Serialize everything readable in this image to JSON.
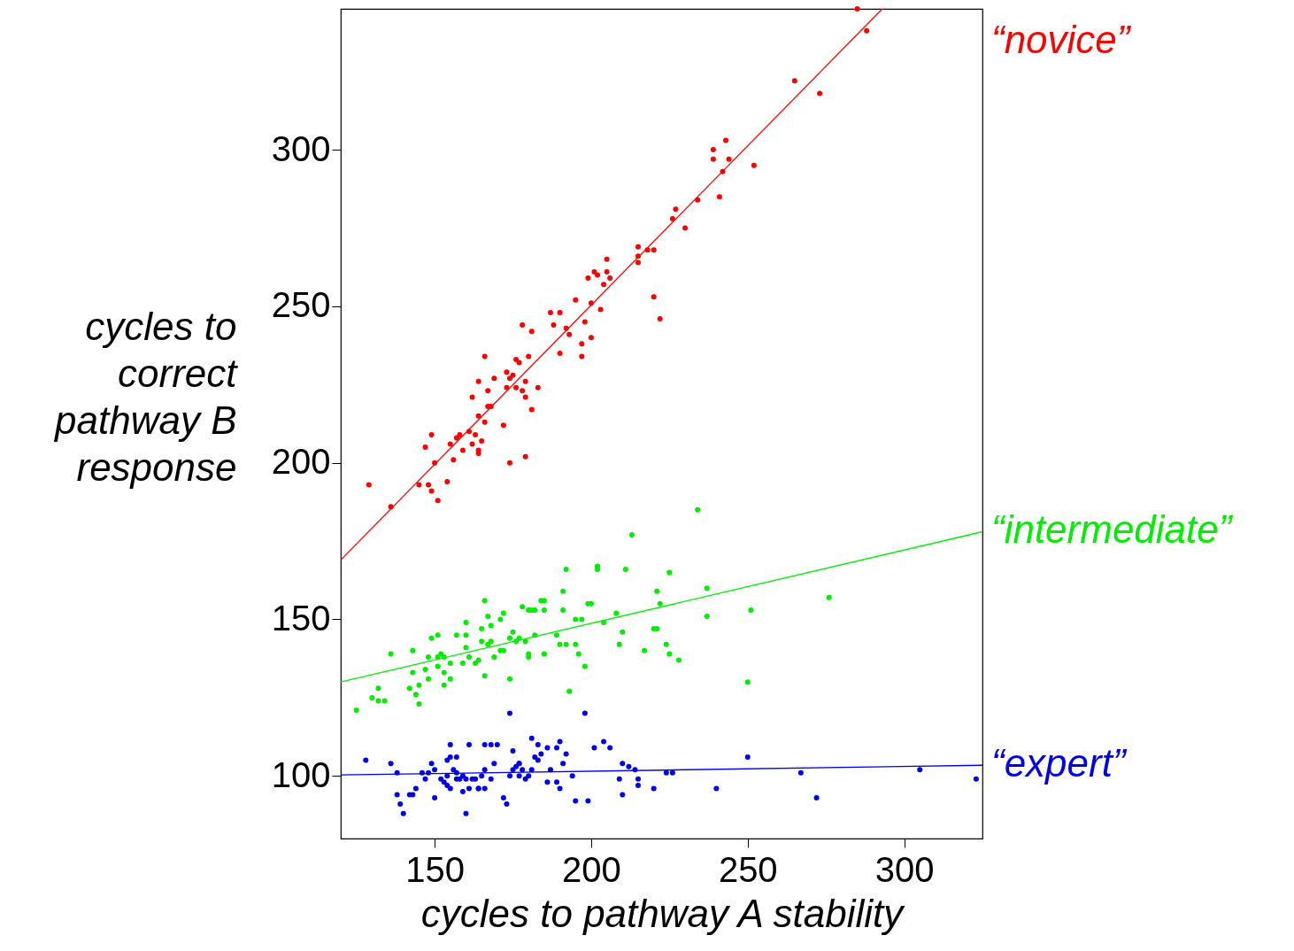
{
  "chart_data": {
    "type": "scatter",
    "xlabel": "cycles to pathway A stability",
    "ylabel": "cycles to correct pathway B response",
    "xlim": [
      120,
      325
    ],
    "ylim": [
      80,
      345
    ],
    "xticks": [
      150,
      200,
      250,
      300
    ],
    "yticks": [
      100,
      150,
      200,
      250,
      300
    ],
    "series": [
      {
        "type": "scatter",
        "marker": "circle",
        "color": "#ff0000",
        "x": [
          129,
          136,
          145,
          147,
          149,
          148,
          149,
          150,
          151,
          154,
          155,
          156,
          157,
          158,
          159,
          161,
          162,
          162,
          163,
          164,
          164,
          165,
          164,
          164,
          166,
          166,
          167,
          167,
          168,
          169,
          172,
          173,
          173,
          174,
          174,
          175,
          176,
          176,
          177,
          178,
          178,
          179,
          179,
          179,
          180,
          181,
          181,
          183,
          187,
          188,
          190,
          190,
          192,
          193,
          195,
          197,
          197,
          198,
          199,
          200,
          200,
          201,
          202,
          203,
          204,
          205,
          205,
          206,
          215,
          215,
          215,
          218,
          220,
          220,
          222,
          226,
          227,
          230,
          234,
          239,
          239,
          241,
          242,
          243,
          244,
          252,
          265,
          273,
          285,
          288
        ],
        "values": [
          193,
          186,
          193,
          205,
          209,
          193,
          191,
          200,
          188,
          194,
          206,
          201,
          208,
          209,
          204,
          210,
          221,
          206,
          209,
          204,
          215,
          207,
          226,
          203,
          213,
          234,
          223,
          218,
          218,
          227,
          212,
          229,
          224,
          227,
          200,
          228,
          224,
          233,
          232,
          223,
          244,
          226,
          202,
          221,
          234,
          242,
          217,
          224,
          248,
          244,
          248,
          235,
          243,
          241,
          252,
          238,
          234,
          245,
          259,
          251,
          240,
          261,
          260,
          249,
          257,
          261,
          265,
          259,
          269,
          264,
          266,
          268,
          268,
          253,
          246,
          278,
          281,
          275,
          284,
          300,
          297,
          285,
          293,
          303,
          297,
          295,
          322,
          318,
          345,
          338
        ]
      },
      {
        "type": "line",
        "marker": "none",
        "name": "“novice”",
        "color": "#ff0000",
        "x": [
          120,
          293
        ],
        "values": [
          169,
          345
        ]
      },
      {
        "type": "scatter",
        "marker": "circle",
        "color": "#00ee00",
        "x": [
          125,
          130,
          132,
          132,
          134,
          136,
          142,
          143,
          143,
          144,
          145,
          145,
          147,
          148,
          148,
          149,
          151,
          151,
          151,
          152,
          153,
          153,
          153,
          155,
          155,
          157,
          159,
          160,
          160,
          160,
          161,
          163,
          164,
          165,
          165,
          166,
          166,
          167,
          167,
          168,
          168,
          169,
          171,
          171,
          172,
          172,
          174,
          174,
          175,
          176,
          177,
          178,
          179,
          180,
          180,
          180,
          181,
          182,
          182,
          184,
          185,
          185,
          185,
          189,
          190,
          191,
          191,
          192,
          192,
          193,
          195,
          195,
          196,
          197,
          198,
          199,
          200,
          202,
          202,
          204,
          208,
          209,
          210,
          211,
          213,
          217,
          220,
          221,
          221,
          222,
          224,
          225,
          225,
          228,
          234,
          237,
          237,
          250,
          251,
          276
        ],
        "values": [
          121,
          125,
          128,
          124,
          124,
          139,
          128,
          140,
          133,
          126,
          123,
          129,
          134,
          138,
          131,
          144,
          145,
          138,
          135,
          139,
          133,
          129,
          138,
          131,
          136,
          145,
          136,
          149,
          141,
          145,
          138,
          136,
          137,
          147,
          143,
          156,
          132,
          151,
          142,
          143,
          148,
          138,
          140,
          150,
          152,
          140,
          144,
          131,
          146,
          143,
          144,
          154,
          143,
          153,
          139,
          138,
          153,
          153,
          145,
          156,
          153,
          156,
          139,
          145,
          142,
          159,
          153,
          166,
          142,
          127,
          150,
          142,
          139,
          150,
          135,
          155,
          155,
          167,
          166,
          149,
          152,
          142,
          146,
          166,
          177,
          140,
          147,
          159,
          147,
          155,
          142,
          139,
          165,
          137,
          185,
          160,
          151,
          130,
          153,
          157
        ]
      },
      {
        "type": "line",
        "marker": "none",
        "name": "“intermediate”",
        "color": "#00ee00",
        "x": [
          120,
          325
        ],
        "values": [
          130,
          178
        ]
      },
      {
        "type": "scatter",
        "marker": "circle",
        "color": "#0000ee",
        "x": [
          128,
          136,
          138,
          138,
          139,
          140,
          142,
          143,
          144,
          146,
          147,
          148,
          149,
          150,
          150,
          152,
          153,
          154,
          154,
          154,
          155,
          155,
          155,
          156,
          157,
          157,
          157,
          158,
          159,
          159,
          160,
          160,
          161,
          161,
          162,
          163,
          164,
          164,
          165,
          166,
          166,
          166,
          168,
          168,
          169,
          170,
          172,
          173,
          174,
          174,
          175,
          175,
          176,
          177,
          177,
          177,
          178,
          179,
          180,
          181,
          181,
          182,
          183,
          183,
          184,
          186,
          186,
          187,
          189,
          189,
          190,
          190,
          191,
          192,
          194,
          195,
          198,
          199,
          201,
          204,
          206,
          209,
          210,
          210,
          212,
          214,
          215,
          215,
          220,
          224,
          226,
          240,
          250,
          267,
          272,
          305,
          323
        ],
        "values": [
          105,
          104,
          101,
          94,
          91,
          88,
          94,
          94,
          96,
          101,
          99,
          101,
          104,
          93,
          102,
          99,
          98,
          105,
          100,
          97,
          96,
          106,
          110,
          102,
          99,
          106,
          101,
          99,
          95,
          100,
          88,
          99,
          96,
          110,
          99,
          99,
          96,
          96,
          100,
          102,
          96,
          110,
          99,
          110,
          104,
          110,
          93,
          91,
          100,
          120,
          102,
          108,
          103,
          104,
          100,
          104,
          102,
          99,
          100,
          112,
          102,
          106,
          110,
          105,
          107,
          98,
          109,
          102,
          98,
          109,
          96,
          111,
          104,
          107,
          100,
          92,
          120,
          92,
          109,
          111,
          109,
          99,
          94,
          104,
          103,
          102,
          99,
          97,
          96,
          101,
          101,
          96,
          106,
          101,
          93,
          102,
          99
        ]
      },
      {
        "type": "line",
        "marker": "none",
        "name": "“expert”",
        "color": "#0000ee",
        "x": [
          120,
          325
        ],
        "values": [
          100.3,
          103.4
        ]
      }
    ]
  }
}
